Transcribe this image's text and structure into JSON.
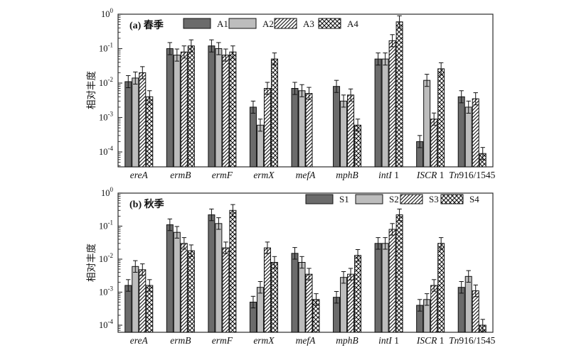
{
  "page": {
    "background": "#ffffff",
    "figure_type": "two-panel grouped bar chart, log y-axis"
  },
  "colors": {
    "bar_dark": "#6b6b6b",
    "bar_light": "#bdbdbd",
    "hatch_line": "#111111",
    "bar_stroke": "#111111",
    "frame": "#2b2b2b",
    "error_bar": "#111111"
  },
  "chart_data": [
    {
      "type": "bar",
      "panel_label": "(a) 春季",
      "ylabel": "相对丰度",
      "yscale": "log",
      "ylim": [
        4e-05,
        1
      ],
      "y_tick_exponents": [
        0,
        -1,
        -2,
        -3,
        -4
      ],
      "y_tick_labels": [
        "10^0",
        "10^-1",
        "10^-2",
        "10^-3",
        "10^-4"
      ],
      "grid": false,
      "categories": [
        "ereA",
        "ermB",
        "ermF",
        "ermX",
        "mefA",
        "mphB",
        "intI 1",
        "ISCR 1",
        "Tn916/1545"
      ],
      "categories_parts": [
        [
          "ereA",
          ""
        ],
        [
          "ermB",
          ""
        ],
        [
          "ermF",
          ""
        ],
        [
          "ermX",
          ""
        ],
        [
          "mefA",
          ""
        ],
        [
          "mphB",
          ""
        ],
        [
          "intI",
          " 1"
        ],
        [
          "ISCR",
          " 1"
        ],
        [
          "Tn",
          "916/1545"
        ]
      ],
      "legend": {
        "position": "top-inside-center",
        "entries": [
          "A1",
          "A2",
          "A3",
          "A4"
        ]
      },
      "series": [
        {
          "name": "A1",
          "style": "solid-dark",
          "values": [
            0.011,
            0.1,
            0.12,
            0.002,
            0.007,
            0.008,
            0.05,
            0.0002,
            0.004
          ]
        },
        {
          "name": "A2",
          "style": "solid-light",
          "values": [
            0.014,
            0.065,
            0.1,
            0.0006,
            0.006,
            0.003,
            0.05,
            0.012,
            0.002
          ]
        },
        {
          "name": "A3",
          "style": "hatch-diagonal",
          "values": [
            0.02,
            0.08,
            0.065,
            0.007,
            0.005,
            0.0045,
            0.17,
            0.0009,
            0.0035
          ]
        },
        {
          "name": "A4",
          "style": "hatch-cross",
          "values": [
            0.004,
            0.12,
            0.08,
            0.05,
            null,
            0.0006,
            0.6,
            0.026,
            9e-05
          ]
        }
      ],
      "error_bars": {
        "shown": true,
        "approx_up_factor": 1.5,
        "approx_down_factor": 1.5
      }
    },
    {
      "type": "bar",
      "panel_label": "(b) 秋季",
      "ylabel": "相对丰度",
      "yscale": "log",
      "ylim": [
        4e-05,
        1
      ],
      "y_tick_exponents": [
        0,
        -1,
        -2,
        -3,
        -4
      ],
      "y_tick_labels": [
        "10^0",
        "10^-1",
        "10^-2",
        "10^-3",
        "10^-4"
      ],
      "grid": false,
      "categories": [
        "ereA",
        "ermB",
        "ermF",
        "ermX",
        "mefA",
        "mphB",
        "intI 1",
        "ISCR 1",
        "Tn916/1545"
      ],
      "categories_parts": [
        [
          "ereA",
          ""
        ],
        [
          "ermB",
          ""
        ],
        [
          "ermF",
          ""
        ],
        [
          "ermX",
          ""
        ],
        [
          "mefA",
          ""
        ],
        [
          "mphB",
          ""
        ],
        [
          "intI",
          " 1"
        ],
        [
          "ISCR",
          " 1"
        ],
        [
          "Tn",
          "916/1545"
        ]
      ],
      "legend": {
        "position": "top-inside-right",
        "entries": [
          "S1",
          "S2",
          "S3",
          "S4"
        ]
      },
      "series": [
        {
          "name": "S1",
          "style": "solid-dark",
          "values": [
            0.0016,
            0.11,
            0.22,
            0.0005,
            0.015,
            0.0007,
            0.03,
            0.0004,
            0.0014
          ]
        },
        {
          "name": "S2",
          "style": "solid-light",
          "values": [
            0.006,
            0.065,
            0.12,
            0.0014,
            0.008,
            0.0028,
            0.03,
            0.0006,
            0.003
          ]
        },
        {
          "name": "S3",
          "style": "hatch-diagonal",
          "values": [
            0.0048,
            0.03,
            0.022,
            0.022,
            0.0035,
            0.0035,
            0.08,
            0.0016,
            0.0011
          ]
        },
        {
          "name": "S4",
          "style": "hatch-cross",
          "values": [
            0.0016,
            0.018,
            0.3,
            0.008,
            0.0006,
            0.013,
            0.22,
            0.03,
            0.0001
          ]
        }
      ],
      "error_bars": {
        "shown": true,
        "approx_up_factor": 1.5,
        "approx_down_factor": 1.5
      }
    }
  ]
}
